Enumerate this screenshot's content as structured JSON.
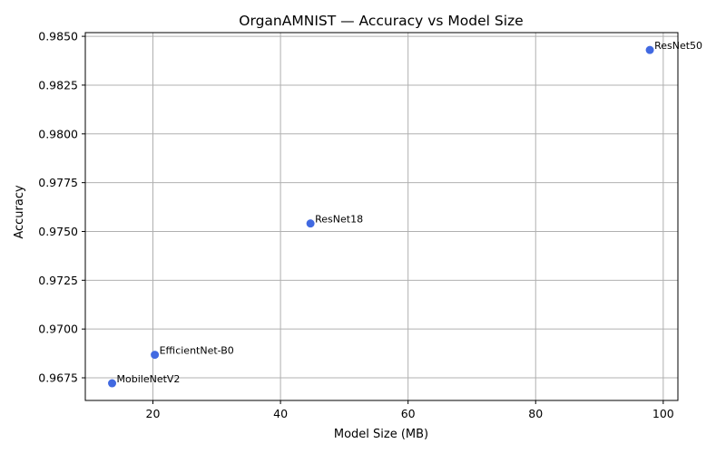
{
  "chart_data": {
    "type": "scatter",
    "title": "OrganAMNIST — Accuracy vs Model Size",
    "xlabel": "Model Size (MB)",
    "ylabel": "Accuracy",
    "xlim": [
      9.4,
      102.3
    ],
    "ylim": [
      0.96634,
      0.98519
    ],
    "xticks": [
      20,
      40,
      60,
      80,
      100
    ],
    "xtick_labels": [
      "20",
      "40",
      "60",
      "80",
      "100"
    ],
    "yticks": [
      0.9675,
      0.97,
      0.9725,
      0.975,
      0.9775,
      0.98,
      0.9825,
      0.985
    ],
    "ytick_labels": [
      "0.9675",
      "0.9700",
      "0.9725",
      "0.9750",
      "0.9775",
      "0.9800",
      "0.9825",
      "0.9850"
    ],
    "grid": true,
    "color": "#4169e1",
    "points": [
      {
        "label": "MobileNetV2",
        "x": 13.6,
        "y": 0.96722
      },
      {
        "label": "EfficientNet-B0",
        "x": 20.3,
        "y": 0.96868
      },
      {
        "label": "ResNet18",
        "x": 44.7,
        "y": 0.97541
      },
      {
        "label": "ResNet50",
        "x": 97.9,
        "y": 0.9843
      }
    ]
  }
}
